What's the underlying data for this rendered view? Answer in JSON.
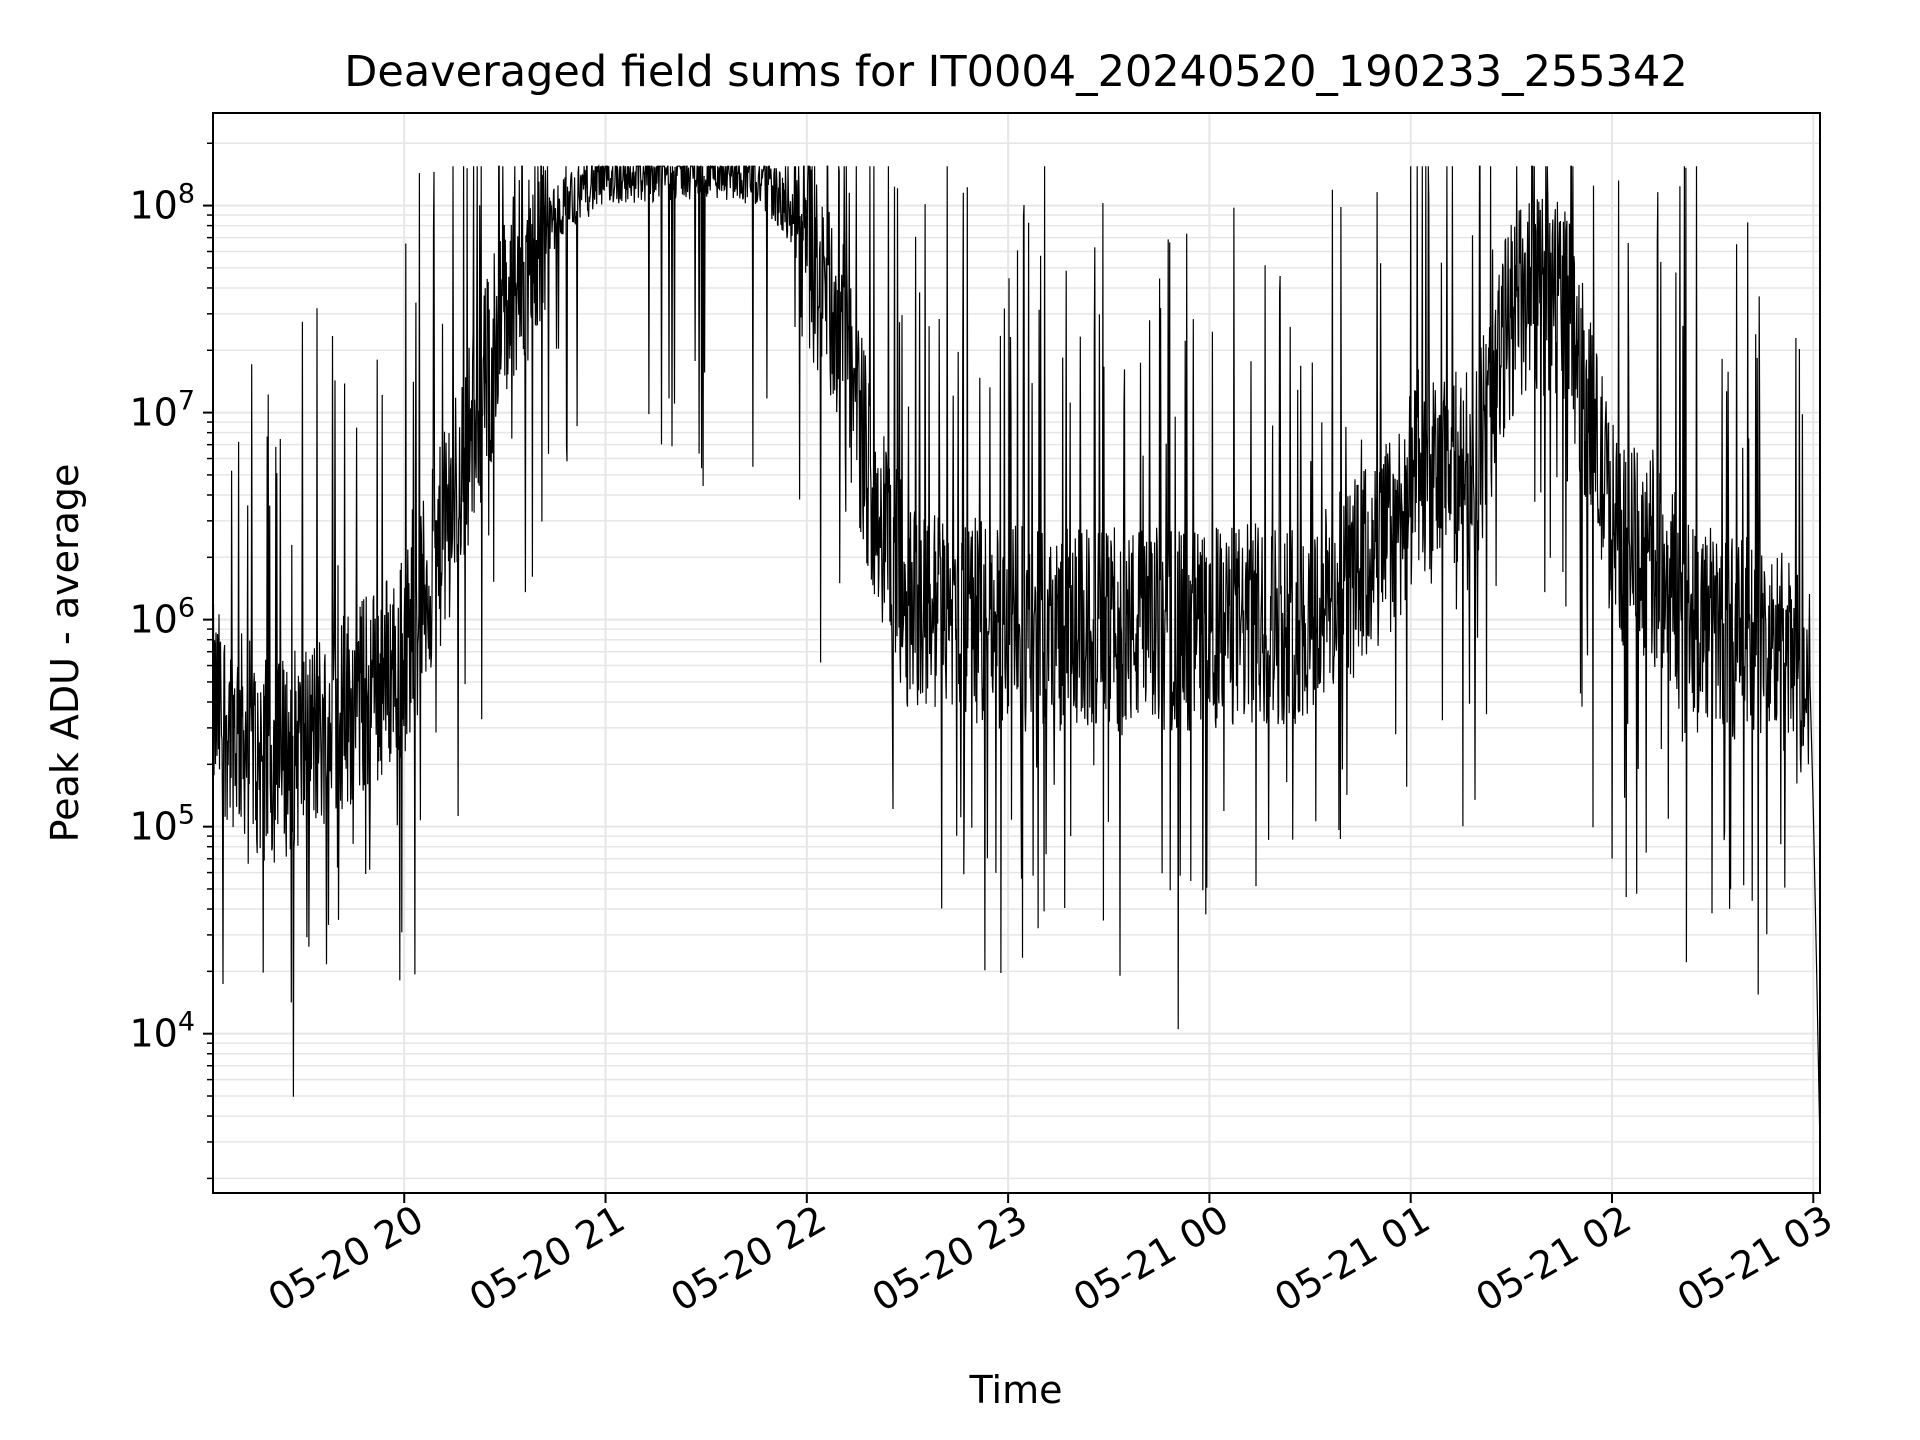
{
  "chart_data": {
    "type": "line",
    "title": "Deaveraged field sums for IT0004_20240520_190233_255342",
    "xlabel": "Time",
    "ylabel": "Peak ADU - average",
    "yscale": "log",
    "xlim": [
      "2024-05-20 19:03",
      "2024-05-21 03:02"
    ],
    "ylim": [
      1700,
      280000000
    ],
    "grid": true,
    "line_color": "#000000",
    "grid_color": "#e6e6e6",
    "x_ticks": [
      {
        "t": "2024-05-20 20:00",
        "label": "05-20 20"
      },
      {
        "t": "2024-05-20 21:00",
        "label": "05-20 21"
      },
      {
        "t": "2024-05-20 22:00",
        "label": "05-20 22"
      },
      {
        "t": "2024-05-20 23:00",
        "label": "05-20 23"
      },
      {
        "t": "2024-05-21 00:00",
        "label": "05-21 00"
      },
      {
        "t": "2024-05-21 01:00",
        "label": "05-21 01"
      },
      {
        "t": "2024-05-21 02:00",
        "label": "05-21 02"
      },
      {
        "t": "2024-05-21 03:00",
        "label": "05-21 03"
      }
    ],
    "y_ticks": [
      {
        "value": 10000,
        "mantissa": "10",
        "exponent": "4"
      },
      {
        "value": 100000,
        "mantissa": "10",
        "exponent": "5"
      },
      {
        "value": 1000000,
        "mantissa": "10",
        "exponent": "6"
      },
      {
        "value": 10000000,
        "mantissa": "10",
        "exponent": "7"
      },
      {
        "value": 100000000,
        "mantissa": "10",
        "exponent": "8"
      }
    ],
    "series": [
      {
        "baseline": [
          [
            "2024-05-20 19:03",
            380000
          ],
          [
            "2024-05-20 19:10",
            300000
          ],
          [
            "2024-05-20 19:20",
            200000
          ],
          [
            "2024-05-20 19:30",
            250000
          ],
          [
            "2024-05-20 19:40",
            350000
          ],
          [
            "2024-05-20 19:50",
            450000
          ],
          [
            "2024-05-20 20:00",
            700000
          ],
          [
            "2024-05-20 20:10",
            2000000
          ],
          [
            "2024-05-20 20:20",
            8000000
          ],
          [
            "2024-05-20 20:30",
            30000000
          ],
          [
            "2024-05-20 20:40",
            70000000
          ],
          [
            "2024-05-20 20:50",
            110000000
          ],
          [
            "2024-05-20 21:00",
            140000000
          ],
          [
            "2024-05-20 21:20",
            150000000
          ],
          [
            "2024-05-20 21:40",
            150000000
          ],
          [
            "2024-05-20 21:50",
            120000000
          ],
          [
            "2024-05-20 22:00",
            60000000
          ],
          [
            "2024-05-20 22:10",
            25000000
          ],
          [
            "2024-05-20 22:20",
            4000000
          ],
          [
            "2024-05-20 22:30",
            1200000
          ],
          [
            "2024-05-20 23:00",
            900000
          ],
          [
            "2024-05-21 00:00",
            900000
          ],
          [
            "2024-05-21 00:30",
            1000000
          ],
          [
            "2024-05-21 00:50",
            2000000
          ],
          [
            "2024-05-21 01:00",
            4000000
          ],
          [
            "2024-05-21 01:20",
            6000000
          ],
          [
            "2024-05-21 01:30",
            30000000
          ],
          [
            "2024-05-21 01:45",
            40000000
          ],
          [
            "2024-05-21 02:00",
            3000000
          ],
          [
            "2024-05-21 02:30",
            900000
          ],
          [
            "2024-05-21 02:50",
            700000
          ],
          [
            "2024-05-21 02:59",
            500000
          ],
          [
            "2024-05-21 03:00",
            120000
          ],
          [
            "2024-05-21 03:01",
            20000
          ],
          [
            "2024-05-21 03:02",
            2800
          ]
        ],
        "noise_span_decades": 1.0
      }
    ]
  }
}
